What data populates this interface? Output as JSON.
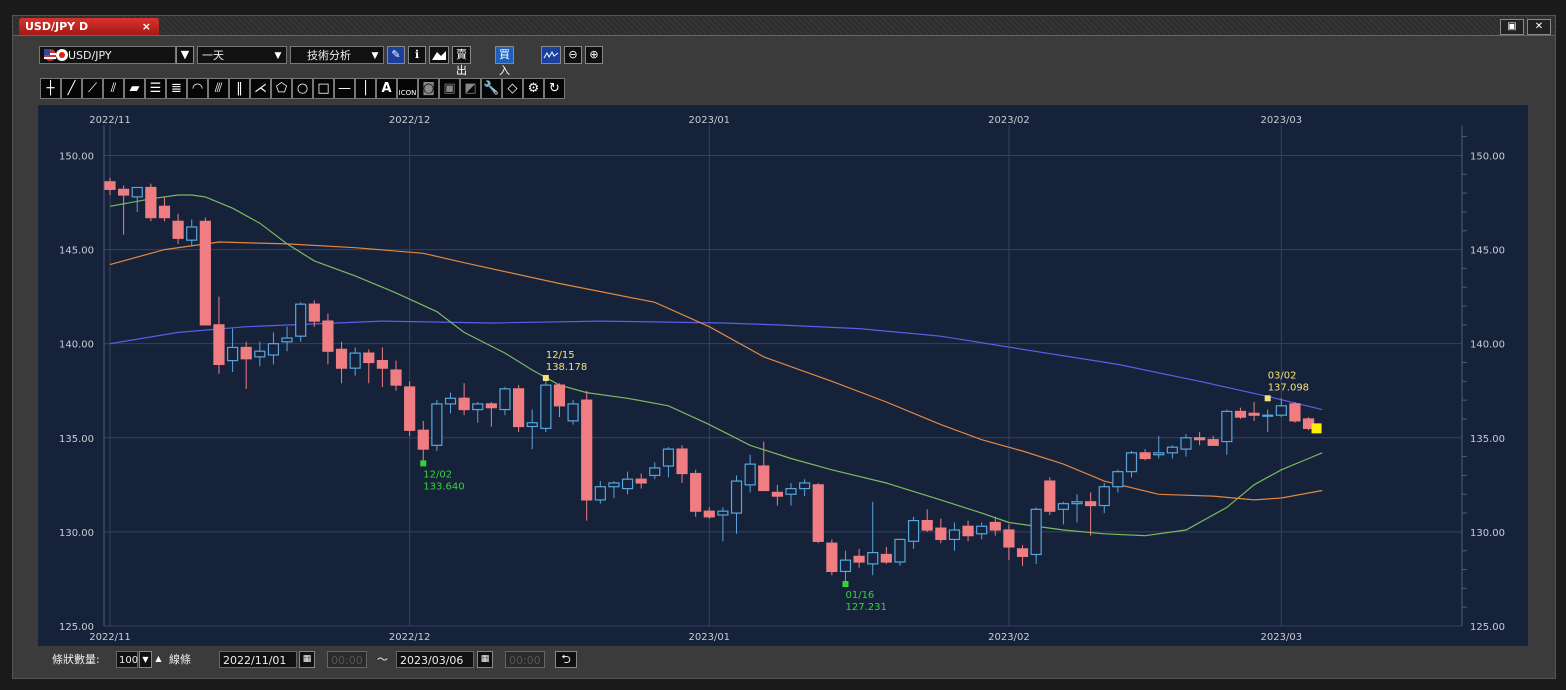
{
  "window": {
    "tab_title": "USD/JPY D",
    "tab_close": "×",
    "maximize_glyph": "▣",
    "close_glyph": "✕"
  },
  "toolbar": {
    "symbol": "USD/JPY",
    "period": "一天",
    "tech_analysis": "技術分析",
    "sell_price": "賣出價",
    "buy_price": "買入價",
    "selected_price": "buy"
  },
  "drawing_tools": [
    "crosshair",
    "line",
    "ray-line",
    "extended-line",
    "ruler",
    "horizontal-lines",
    "multi-lines",
    "fan",
    "fib-lines",
    "vertical-lines",
    "pitchfork",
    "pentagon",
    "circle",
    "rectangle",
    "horizontal-line",
    "vertical-line",
    "text",
    "icon",
    "tool-a",
    "tool-b",
    "tool-c",
    "wrench",
    "eraser",
    "settings",
    "magnet"
  ],
  "icon_text": {
    "text_tool": "A",
    "icon_tool": "ICON"
  },
  "bottom_bar": {
    "count_label": "條狀數量:",
    "count_value": "100",
    "line_type": "線條",
    "from_date": "2022/11/01",
    "from_time": "00:00",
    "to_sep": "〜",
    "to_date": "2023/03/06",
    "to_time": "00:00"
  },
  "chart_data": {
    "type": "candlestick",
    "symbol": "USD/JPY",
    "timeframe": "D",
    "x_ticks": [
      "2022/11",
      "2022/12",
      "2023/01",
      "2023/02",
      "2023/03"
    ],
    "y_ticks": [
      "125.00",
      "130.00",
      "135.00",
      "140.00",
      "145.00",
      "150.00"
    ],
    "ylim": [
      125,
      151.3
    ],
    "colors": {
      "up": "#56a6dd",
      "down": "#f07d82",
      "ma_short": "#78bb5f",
      "ma_mid": "#e08840",
      "ma_long": "#5a5ee8",
      "hi_label": "#f2e27a",
      "lo_label": "#33d433",
      "grid": "#34435e",
      "bg": "#16223a"
    },
    "candles": [
      {
        "o": 148.6,
        "h": 148.8,
        "l": 147.9,
        "c": 148.2
      },
      {
        "o": 148.2,
        "h": 148.4,
        "l": 145.8,
        "c": 147.9
      },
      {
        "o": 147.8,
        "h": 148.3,
        "l": 147.0,
        "c": 148.3
      },
      {
        "o": 148.3,
        "h": 148.5,
        "l": 146.5,
        "c": 146.7
      },
      {
        "o": 147.3,
        "h": 147.8,
        "l": 146.5,
        "c": 146.7
      },
      {
        "o": 146.5,
        "h": 146.9,
        "l": 145.3,
        "c": 145.6
      },
      {
        "o": 145.5,
        "h": 146.6,
        "l": 145.2,
        "c": 146.2
      },
      {
        "o": 146.5,
        "h": 146.7,
        "l": 141.0,
        "c": 141.0
      },
      {
        "o": 141.0,
        "h": 142.5,
        "l": 138.4,
        "c": 138.9
      },
      {
        "o": 139.1,
        "h": 140.8,
        "l": 138.5,
        "c": 139.8
      },
      {
        "o": 139.8,
        "h": 140.1,
        "l": 137.6,
        "c": 139.2
      },
      {
        "o": 139.3,
        "h": 140.1,
        "l": 138.8,
        "c": 139.6
      },
      {
        "o": 139.4,
        "h": 140.6,
        "l": 138.9,
        "c": 140.0
      },
      {
        "o": 140.1,
        "h": 140.9,
        "l": 139.6,
        "c": 140.3
      },
      {
        "o": 140.4,
        "h": 142.2,
        "l": 140.1,
        "c": 142.1
      },
      {
        "o": 142.1,
        "h": 142.3,
        "l": 140.9,
        "c": 141.2
      },
      {
        "o": 141.2,
        "h": 141.6,
        "l": 138.9,
        "c": 139.6
      },
      {
        "o": 139.7,
        "h": 140.1,
        "l": 137.9,
        "c": 138.7
      },
      {
        "o": 138.7,
        "h": 139.8,
        "l": 138.3,
        "c": 139.5
      },
      {
        "o": 139.5,
        "h": 139.7,
        "l": 137.9,
        "c": 139.0
      },
      {
        "o": 139.1,
        "h": 139.8,
        "l": 137.7,
        "c": 138.7
      },
      {
        "o": 138.6,
        "h": 139.1,
        "l": 137.5,
        "c": 137.8
      },
      {
        "o": 137.7,
        "h": 138.0,
        "l": 135.1,
        "c": 135.4
      },
      {
        "o": 135.4,
        "h": 135.9,
        "l": 133.6,
        "c": 134.4
      },
      {
        "o": 134.6,
        "h": 137.0,
        "l": 134.3,
        "c": 136.8
      },
      {
        "o": 136.8,
        "h": 137.4,
        "l": 136.3,
        "c": 137.1
      },
      {
        "o": 137.1,
        "h": 137.9,
        "l": 136.2,
        "c": 136.5
      },
      {
        "o": 136.5,
        "h": 136.9,
        "l": 135.8,
        "c": 136.8
      },
      {
        "o": 136.8,
        "h": 136.9,
        "l": 135.6,
        "c": 136.6
      },
      {
        "o": 136.5,
        "h": 137.7,
        "l": 136.2,
        "c": 137.6
      },
      {
        "o": 137.6,
        "h": 137.8,
        "l": 135.3,
        "c": 135.6
      },
      {
        "o": 135.6,
        "h": 136.5,
        "l": 134.4,
        "c": 135.8
      },
      {
        "o": 135.5,
        "h": 138.2,
        "l": 135.3,
        "c": 137.8
      },
      {
        "o": 137.8,
        "h": 137.9,
        "l": 136.1,
        "c": 136.7
      },
      {
        "o": 135.9,
        "h": 137.0,
        "l": 135.7,
        "c": 136.8
      },
      {
        "o": 137.0,
        "h": 137.5,
        "l": 130.6,
        "c": 131.7
      },
      {
        "o": 131.7,
        "h": 132.7,
        "l": 131.5,
        "c": 132.4
      },
      {
        "o": 132.4,
        "h": 132.7,
        "l": 131.8,
        "c": 132.6
      },
      {
        "o": 132.3,
        "h": 133.2,
        "l": 132.0,
        "c": 132.8
      },
      {
        "o": 132.8,
        "h": 133.1,
        "l": 132.3,
        "c": 132.6
      },
      {
        "o": 133.0,
        "h": 133.7,
        "l": 132.8,
        "c": 133.4
      },
      {
        "o": 133.5,
        "h": 134.5,
        "l": 132.9,
        "c": 134.4
      },
      {
        "o": 134.4,
        "h": 134.6,
        "l": 132.6,
        "c": 133.1
      },
      {
        "o": 133.1,
        "h": 133.3,
        "l": 130.8,
        "c": 131.1
      },
      {
        "o": 131.1,
        "h": 131.3,
        "l": 130.7,
        "c": 130.8
      },
      {
        "o": 130.9,
        "h": 131.3,
        "l": 129.5,
        "c": 131.1
      },
      {
        "o": 131.0,
        "h": 133.0,
        "l": 129.9,
        "c": 132.7
      },
      {
        "o": 132.5,
        "h": 134.1,
        "l": 132.1,
        "c": 133.6
      },
      {
        "o": 133.5,
        "h": 134.8,
        "l": 132.3,
        "c": 132.2
      },
      {
        "o": 132.1,
        "h": 132.5,
        "l": 131.4,
        "c": 131.9
      },
      {
        "o": 132.0,
        "h": 132.6,
        "l": 131.4,
        "c": 132.3
      },
      {
        "o": 132.3,
        "h": 132.8,
        "l": 131.9,
        "c": 132.6
      },
      {
        "o": 132.5,
        "h": 132.6,
        "l": 129.4,
        "c": 129.5
      },
      {
        "o": 129.4,
        "h": 129.6,
        "l": 127.7,
        "c": 127.9
      },
      {
        "o": 127.9,
        "h": 129.0,
        "l": 127.2,
        "c": 128.5
      },
      {
        "o": 128.7,
        "h": 129.1,
        "l": 128.1,
        "c": 128.4
      },
      {
        "o": 128.3,
        "h": 131.6,
        "l": 127.7,
        "c": 128.9
      },
      {
        "o": 128.8,
        "h": 129.2,
        "l": 128.3,
        "c": 128.4
      },
      {
        "o": 128.4,
        "h": 129.5,
        "l": 128.2,
        "c": 129.6
      },
      {
        "o": 129.5,
        "h": 130.8,
        "l": 129.1,
        "c": 130.6
      },
      {
        "o": 130.6,
        "h": 131.2,
        "l": 130.0,
        "c": 130.1
      },
      {
        "o": 130.2,
        "h": 130.7,
        "l": 129.4,
        "c": 129.6
      },
      {
        "o": 129.6,
        "h": 130.5,
        "l": 129.0,
        "c": 130.1
      },
      {
        "o": 130.3,
        "h": 130.6,
        "l": 129.5,
        "c": 129.8
      },
      {
        "o": 129.9,
        "h": 130.5,
        "l": 129.6,
        "c": 130.3
      },
      {
        "o": 130.5,
        "h": 130.8,
        "l": 129.8,
        "c": 130.1
      },
      {
        "o": 130.1,
        "h": 130.4,
        "l": 128.5,
        "c": 129.2
      },
      {
        "o": 129.1,
        "h": 129.3,
        "l": 128.2,
        "c": 128.7
      },
      {
        "o": 128.8,
        "h": 131.3,
        "l": 128.3,
        "c": 131.2
      },
      {
        "o": 132.7,
        "h": 132.9,
        "l": 130.9,
        "c": 131.1
      },
      {
        "o": 131.2,
        "h": 131.6,
        "l": 130.4,
        "c": 131.5
      },
      {
        "o": 131.5,
        "h": 132.0,
        "l": 130.5,
        "c": 131.6
      },
      {
        "o": 131.6,
        "h": 132.1,
        "l": 129.8,
        "c": 131.4
      },
      {
        "o": 131.4,
        "h": 132.6,
        "l": 131.0,
        "c": 132.4
      },
      {
        "o": 132.4,
        "h": 133.3,
        "l": 132.1,
        "c": 133.2
      },
      {
        "o": 133.2,
        "h": 134.3,
        "l": 132.9,
        "c": 134.2
      },
      {
        "o": 134.2,
        "h": 134.4,
        "l": 133.8,
        "c": 133.9
      },
      {
        "o": 134.1,
        "h": 135.1,
        "l": 133.9,
        "c": 134.2
      },
      {
        "o": 134.2,
        "h": 134.6,
        "l": 133.9,
        "c": 134.5
      },
      {
        "o": 134.4,
        "h": 135.2,
        "l": 134.0,
        "c": 135.0
      },
      {
        "o": 135.0,
        "h": 135.3,
        "l": 134.6,
        "c": 134.9
      },
      {
        "o": 134.9,
        "h": 135.1,
        "l": 134.6,
        "c": 134.6
      },
      {
        "o": 134.8,
        "h": 136.5,
        "l": 134.1,
        "c": 136.4
      },
      {
        "o": 136.4,
        "h": 136.6,
        "l": 136.0,
        "c": 136.1
      },
      {
        "o": 136.3,
        "h": 136.9,
        "l": 135.9,
        "c": 136.2
      },
      {
        "o": 136.2,
        "h": 136.5,
        "l": 135.3,
        "c": 136.2
      },
      {
        "o": 136.2,
        "h": 137.1,
        "l": 136.1,
        "c": 136.7
      },
      {
        "o": 136.8,
        "h": 136.9,
        "l": 135.8,
        "c": 135.9
      },
      {
        "o": 136.0,
        "h": 136.1,
        "l": 135.4,
        "c": 135.5
      }
    ],
    "ma_short": [
      147.3,
      147.7,
      147.9,
      147.9,
      147.8,
      147.2,
      146.4,
      145.3,
      144.4,
      143.6,
      142.7,
      141.7,
      140.6,
      139.5,
      138.6,
      137.8,
      137.4,
      137.1,
      136.7,
      135.7,
      134.6,
      133.9,
      133.3,
      132.6,
      131.7,
      131.0,
      130.5,
      130.1,
      129.9,
      129.8,
      130.1,
      131.3,
      132.5,
      133.3,
      133.9,
      134.2
    ],
    "ma_short_idx": [
      0,
      3,
      5,
      6,
      7,
      9,
      11,
      13,
      15,
      18,
      21,
      24,
      26,
      29,
      31,
      33,
      35,
      38,
      41,
      44,
      47,
      50,
      53,
      57,
      61,
      64,
      66,
      70,
      73,
      76,
      79,
      82,
      84,
      86,
      88,
      89
    ],
    "ma_mid": [
      144.2,
      145.0,
      145.4,
      145.3,
      145.1,
      144.8,
      144.3,
      143.2,
      142.2,
      140.9,
      139.3,
      138.0,
      136.9,
      135.7,
      134.9,
      134.3,
      133.6,
      132.7,
      132.0,
      131.9,
      131.7,
      131.8,
      132.2
    ],
    "ma_mid_idx": [
      0,
      4,
      8,
      13,
      18,
      23,
      26,
      33,
      40,
      44,
      48,
      53,
      57,
      61,
      64,
      67,
      70,
      73,
      77,
      81,
      84,
      86,
      89
    ],
    "ma_long": [
      140.0,
      140.6,
      140.9,
      141.2,
      141.1,
      141.2,
      141.1,
      141.0,
      140.8,
      140.4,
      139.7,
      138.9,
      138.0,
      137.2,
      136.5
    ],
    "ma_long_idx": [
      0,
      5,
      10,
      20,
      28,
      36,
      45,
      49,
      55,
      61,
      67,
      74,
      80,
      85,
      89
    ],
    "annotations": [
      {
        "idx": 32,
        "price": 138.178,
        "date": "12/15",
        "value": "138.178",
        "kind": "high"
      },
      {
        "idx": 23,
        "price": 133.64,
        "date": "12/02",
        "value": "133.640",
        "kind": "low"
      },
      {
        "idx": 54,
        "price": 127.231,
        "date": "01/16",
        "value": "127.231",
        "kind": "low"
      },
      {
        "idx": 85,
        "price": 137.098,
        "date": "03/02",
        "value": "137.098",
        "kind": "high"
      }
    ],
    "x_tick_idx": [
      0,
      22,
      44,
      66,
      86
    ]
  }
}
